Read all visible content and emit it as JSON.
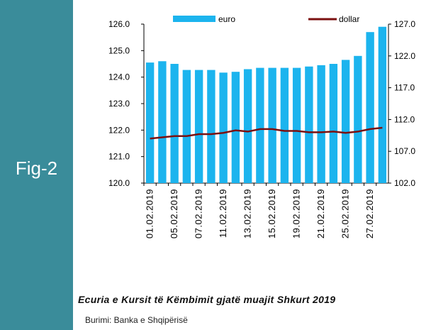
{
  "figure_label": "Fig-2",
  "caption": "Ecuria e Kursit të Këmbimit gjatë muajit Shkurt 2019",
  "source": "Burimi: Banka e Shqipërisë",
  "chart_data": {
    "type": "bar-line",
    "categories": [
      "01.02.2019",
      null,
      "05.02.2019",
      null,
      "07.02.2019",
      null,
      "11.02.2019",
      null,
      "13.02.2019",
      null,
      "15.02.2019",
      null,
      "19.02.2019",
      null,
      "21.02.2019",
      null,
      "25.02.2019",
      null,
      "27.02.2019",
      null
    ],
    "series": [
      {
        "name": "euro",
        "color": "#1cb4ee",
        "values": [
          124.55,
          124.6,
          124.5,
          124.27,
          124.27,
          124.27,
          124.17,
          124.2,
          124.3,
          124.35,
          124.35,
          124.35,
          124.35,
          124.4,
          124.45,
          124.5,
          124.65,
          124.8,
          125.7,
          125.9
        ]
      },
      {
        "name": "dollar",
        "color": "#7b1010",
        "axis": "y2",
        "values": [
          109.0,
          109.2,
          109.4,
          109.4,
          109.7,
          109.7,
          109.9,
          110.3,
          110.1,
          110.5,
          110.5,
          110.2,
          110.2,
          110.0,
          110.0,
          110.1,
          109.9,
          110.1,
          110.5,
          110.7
        ]
      }
    ],
    "ylim": [
      120,
      126
    ],
    "yticks": [
      {
        "value": 120,
        "label": "120.0"
      },
      {
        "value": 121,
        "label": "121.0"
      },
      {
        "value": 122,
        "label": "122.0"
      },
      {
        "value": 123,
        "label": "123.0"
      },
      {
        "value": 124,
        "label": "124.0"
      },
      {
        "value": 125,
        "label": "125.0"
      },
      {
        "value": 126,
        "label": "126.0"
      }
    ],
    "y2lim": [
      102,
      127
    ],
    "y2ticks": [
      {
        "value": 102,
        "label": "102.0"
      },
      {
        "value": 107,
        "label": "107.0"
      },
      {
        "value": 112,
        "label": "112.0"
      },
      {
        "value": 117,
        "label": "117.0"
      },
      {
        "value": 122,
        "label": "122.0"
      },
      {
        "value": 127,
        "label": "127.0"
      }
    ]
  }
}
